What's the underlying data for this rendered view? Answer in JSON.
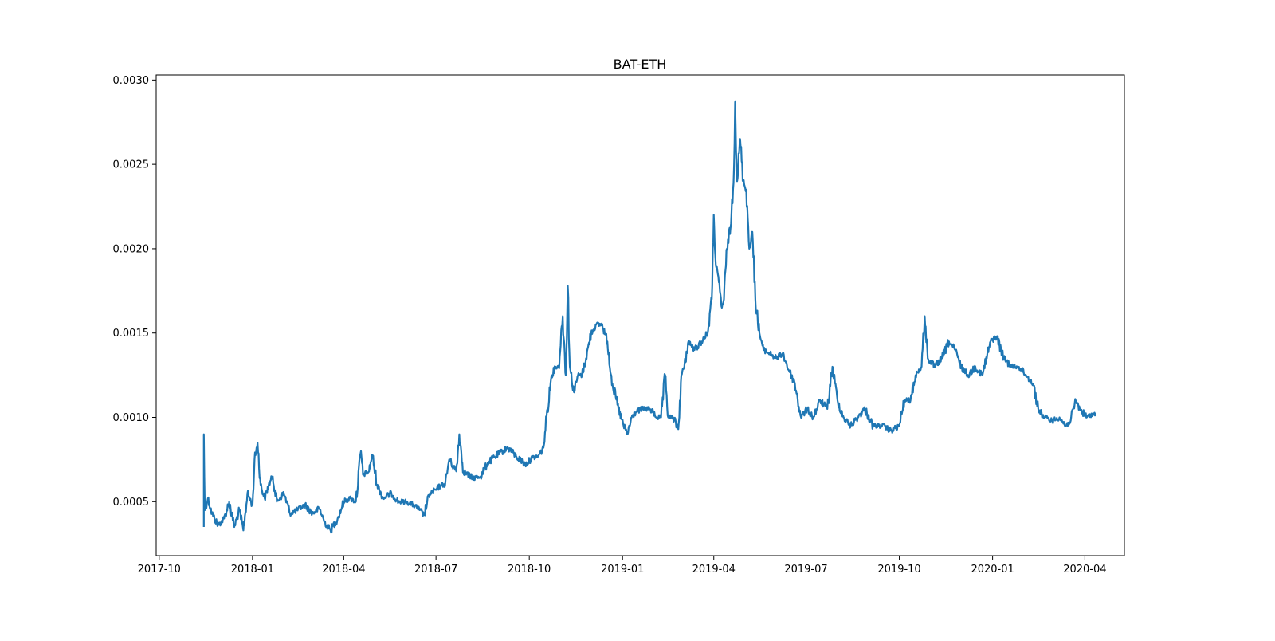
{
  "chart_data": {
    "type": "line",
    "title": "BAT-ETH",
    "xlabel": "",
    "ylabel": "",
    "xlim": [
      "2017-09-28",
      "2020-05-10"
    ],
    "ylim": [
      0.00018,
      0.00303
    ],
    "x_ticks": [
      "2017-10",
      "2018-01",
      "2018-04",
      "2018-07",
      "2018-10",
      "2019-01",
      "2019-04",
      "2019-07",
      "2019-10",
      "2020-01",
      "2020-04"
    ],
    "y_ticks": [
      "0.0005",
      "0.0010",
      "0.0015",
      "0.0020",
      "0.0025",
      "0.0030"
    ],
    "grid": false,
    "legend": "none",
    "series": [
      {
        "color": "#1f77b4",
        "points": [
          [
            "2017-11-14",
            0.00035
          ],
          [
            "2017-11-14",
            0.0009
          ],
          [
            "2017-11-15",
            0.00045
          ],
          [
            "2017-11-18",
            0.00052
          ],
          [
            "2017-11-22",
            0.00043
          ],
          [
            "2017-11-28",
            0.00036
          ],
          [
            "2017-12-04",
            0.0004
          ],
          [
            "2017-12-09",
            0.0005
          ],
          [
            "2017-12-14",
            0.00035
          ],
          [
            "2017-12-19",
            0.00045
          ],
          [
            "2017-12-23",
            0.00033
          ],
          [
            "2017-12-27",
            0.00055
          ],
          [
            "2018-01-01",
            0.00048
          ],
          [
            "2018-01-03",
            0.00075
          ],
          [
            "2018-01-06",
            0.00085
          ],
          [
            "2018-01-09",
            0.0006
          ],
          [
            "2018-01-13",
            0.00052
          ],
          [
            "2018-01-17",
            0.0006
          ],
          [
            "2018-01-21",
            0.00065
          ],
          [
            "2018-01-25",
            0.0005
          ],
          [
            "2018-02-01",
            0.00055
          ],
          [
            "2018-02-07",
            0.00043
          ],
          [
            "2018-02-14",
            0.00045
          ],
          [
            "2018-02-22",
            0.00048
          ],
          [
            "2018-03-01",
            0.00043
          ],
          [
            "2018-03-08",
            0.00046
          ],
          [
            "2018-03-13",
            0.00038
          ],
          [
            "2018-03-19",
            0.00033
          ],
          [
            "2018-03-26",
            0.0004
          ],
          [
            "2018-04-01",
            0.0005
          ],
          [
            "2018-04-07",
            0.00052
          ],
          [
            "2018-04-13",
            0.0005
          ],
          [
            "2018-04-18",
            0.0008
          ],
          [
            "2018-04-20",
            0.00066
          ],
          [
            "2018-04-26",
            0.00068
          ],
          [
            "2018-04-29",
            0.00078
          ],
          [
            "2018-05-04",
            0.0006
          ],
          [
            "2018-05-10",
            0.00052
          ],
          [
            "2018-05-18",
            0.00055
          ],
          [
            "2018-05-25",
            0.0005
          ],
          [
            "2018-06-02",
            0.0005
          ],
          [
            "2018-06-09",
            0.00048
          ],
          [
            "2018-06-15",
            0.00045
          ],
          [
            "2018-06-19",
            0.00042
          ],
          [
            "2018-06-25",
            0.00055
          ],
          [
            "2018-07-01",
            0.00057
          ],
          [
            "2018-07-06",
            0.0006
          ],
          [
            "2018-07-10",
            0.0006
          ],
          [
            "2018-07-14",
            0.00075
          ],
          [
            "2018-07-21",
            0.00068
          ],
          [
            "2018-07-24",
            0.0009
          ],
          [
            "2018-07-28",
            0.00068
          ],
          [
            "2018-08-06",
            0.00064
          ],
          [
            "2018-08-14",
            0.00065
          ],
          [
            "2018-08-21",
            0.00073
          ],
          [
            "2018-08-31",
            0.00078
          ],
          [
            "2018-09-10",
            0.00082
          ],
          [
            "2018-09-18",
            0.00077
          ],
          [
            "2018-09-27",
            0.00072
          ],
          [
            "2018-10-04",
            0.00076
          ],
          [
            "2018-10-10",
            0.00077
          ],
          [
            "2018-10-15",
            0.00082
          ],
          [
            "2018-10-18",
            0.001
          ],
          [
            "2018-10-23",
            0.00125
          ],
          [
            "2018-10-27",
            0.0013
          ],
          [
            "2018-10-30",
            0.0013
          ],
          [
            "2018-11-03",
            0.0016
          ],
          [
            "2018-11-06",
            0.00125
          ],
          [
            "2018-11-08",
            0.00178
          ],
          [
            "2018-11-10",
            0.0013
          ],
          [
            "2018-11-14",
            0.00115
          ],
          [
            "2018-11-18",
            0.00125
          ],
          [
            "2018-11-22",
            0.00125
          ],
          [
            "2018-11-26",
            0.00135
          ],
          [
            "2018-12-01",
            0.0015
          ],
          [
            "2018-12-06",
            0.00155
          ],
          [
            "2018-12-12",
            0.00155
          ],
          [
            "2018-12-17",
            0.00145
          ],
          [
            "2018-12-22",
            0.0012
          ],
          [
            "2018-12-28",
            0.00105
          ],
          [
            "2019-01-02",
            0.00095
          ],
          [
            "2019-01-06",
            0.0009
          ],
          [
            "2019-01-10",
            0.001
          ],
          [
            "2019-01-14",
            0.00103
          ],
          [
            "2019-01-20",
            0.00105
          ],
          [
            "2019-01-28",
            0.00105
          ],
          [
            "2019-02-04",
            0.001
          ],
          [
            "2019-02-08",
            0.001
          ],
          [
            "2019-02-12",
            0.00125
          ],
          [
            "2019-02-15",
            0.001
          ],
          [
            "2019-02-20",
            0.001
          ],
          [
            "2019-02-25",
            0.00093
          ],
          [
            "2019-02-28",
            0.00125
          ],
          [
            "2019-03-03",
            0.0013
          ],
          [
            "2019-03-07",
            0.00145
          ],
          [
            "2019-03-13",
            0.0014
          ],
          [
            "2019-03-20",
            0.00145
          ],
          [
            "2019-03-26",
            0.0015
          ],
          [
            "2019-03-30",
            0.0017
          ],
          [
            "2019-04-01",
            0.0022
          ],
          [
            "2019-04-03",
            0.0019
          ],
          [
            "2019-04-06",
            0.0018
          ],
          [
            "2019-04-09",
            0.00165
          ],
          [
            "2019-04-11",
            0.0017
          ],
          [
            "2019-04-14",
            0.002
          ],
          [
            "2019-04-18",
            0.00215
          ],
          [
            "2019-04-21",
            0.0025
          ],
          [
            "2019-04-22",
            0.00287
          ],
          [
            "2019-04-24",
            0.0024
          ],
          [
            "2019-04-27",
            0.00265
          ],
          [
            "2019-04-30",
            0.0024
          ],
          [
            "2019-05-03",
            0.00235
          ],
          [
            "2019-05-06",
            0.002
          ],
          [
            "2019-05-09",
            0.0021
          ],
          [
            "2019-05-12",
            0.0017
          ],
          [
            "2019-05-16",
            0.0015
          ],
          [
            "2019-05-20",
            0.0014
          ],
          [
            "2019-05-26",
            0.00138
          ],
          [
            "2019-06-02",
            0.00135
          ],
          [
            "2019-06-08",
            0.00138
          ],
          [
            "2019-06-14",
            0.00128
          ],
          [
            "2019-06-20",
            0.0012
          ],
          [
            "2019-06-26",
            0.001
          ],
          [
            "2019-07-02",
            0.00105
          ],
          [
            "2019-07-08",
            0.001
          ],
          [
            "2019-07-15",
            0.0011
          ],
          [
            "2019-07-22",
            0.00105
          ],
          [
            "2019-07-27",
            0.0013
          ],
          [
            "2019-08-01",
            0.0011
          ],
          [
            "2019-08-07",
            0.001
          ],
          [
            "2019-08-14",
            0.00095
          ],
          [
            "2019-08-21",
            0.001
          ],
          [
            "2019-08-28",
            0.00105
          ],
          [
            "2019-09-05",
            0.00095
          ],
          [
            "2019-09-14",
            0.00095
          ],
          [
            "2019-09-23",
            0.00092
          ],
          [
            "2019-10-01",
            0.00095
          ],
          [
            "2019-10-06",
            0.0011
          ],
          [
            "2019-10-12",
            0.0011
          ],
          [
            "2019-10-17",
            0.00125
          ],
          [
            "2019-10-23",
            0.0013
          ],
          [
            "2019-10-26",
            0.0016
          ],
          [
            "2019-10-29",
            0.00135
          ],
          [
            "2019-11-05",
            0.0013
          ],
          [
            "2019-11-12",
            0.00135
          ],
          [
            "2019-11-19",
            0.00145
          ],
          [
            "2019-11-25",
            0.0014
          ],
          [
            "2019-12-01",
            0.0013
          ],
          [
            "2019-12-08",
            0.00125
          ],
          [
            "2019-12-15",
            0.0013
          ],
          [
            "2019-12-22",
            0.00125
          ],
          [
            "2019-12-30",
            0.00145
          ],
          [
            "2020-01-05",
            0.00148
          ],
          [
            "2020-01-12",
            0.00135
          ],
          [
            "2020-01-20",
            0.0013
          ],
          [
            "2020-01-27",
            0.0013
          ],
          [
            "2020-02-03",
            0.00125
          ],
          [
            "2020-02-10",
            0.0012
          ],
          [
            "2020-02-15",
            0.00105
          ],
          [
            "2020-02-21",
            0.001
          ],
          [
            "2020-02-29",
            0.00098
          ],
          [
            "2020-03-07",
            0.001
          ],
          [
            "2020-03-13",
            0.00095
          ],
          [
            "2020-03-18",
            0.00098
          ],
          [
            "2020-03-23",
            0.0011
          ],
          [
            "2020-03-27",
            0.00105
          ],
          [
            "2020-04-03",
            0.001
          ],
          [
            "2020-04-08",
            0.00102
          ],
          [
            "2020-04-12",
            0.00102
          ]
        ]
      }
    ]
  }
}
